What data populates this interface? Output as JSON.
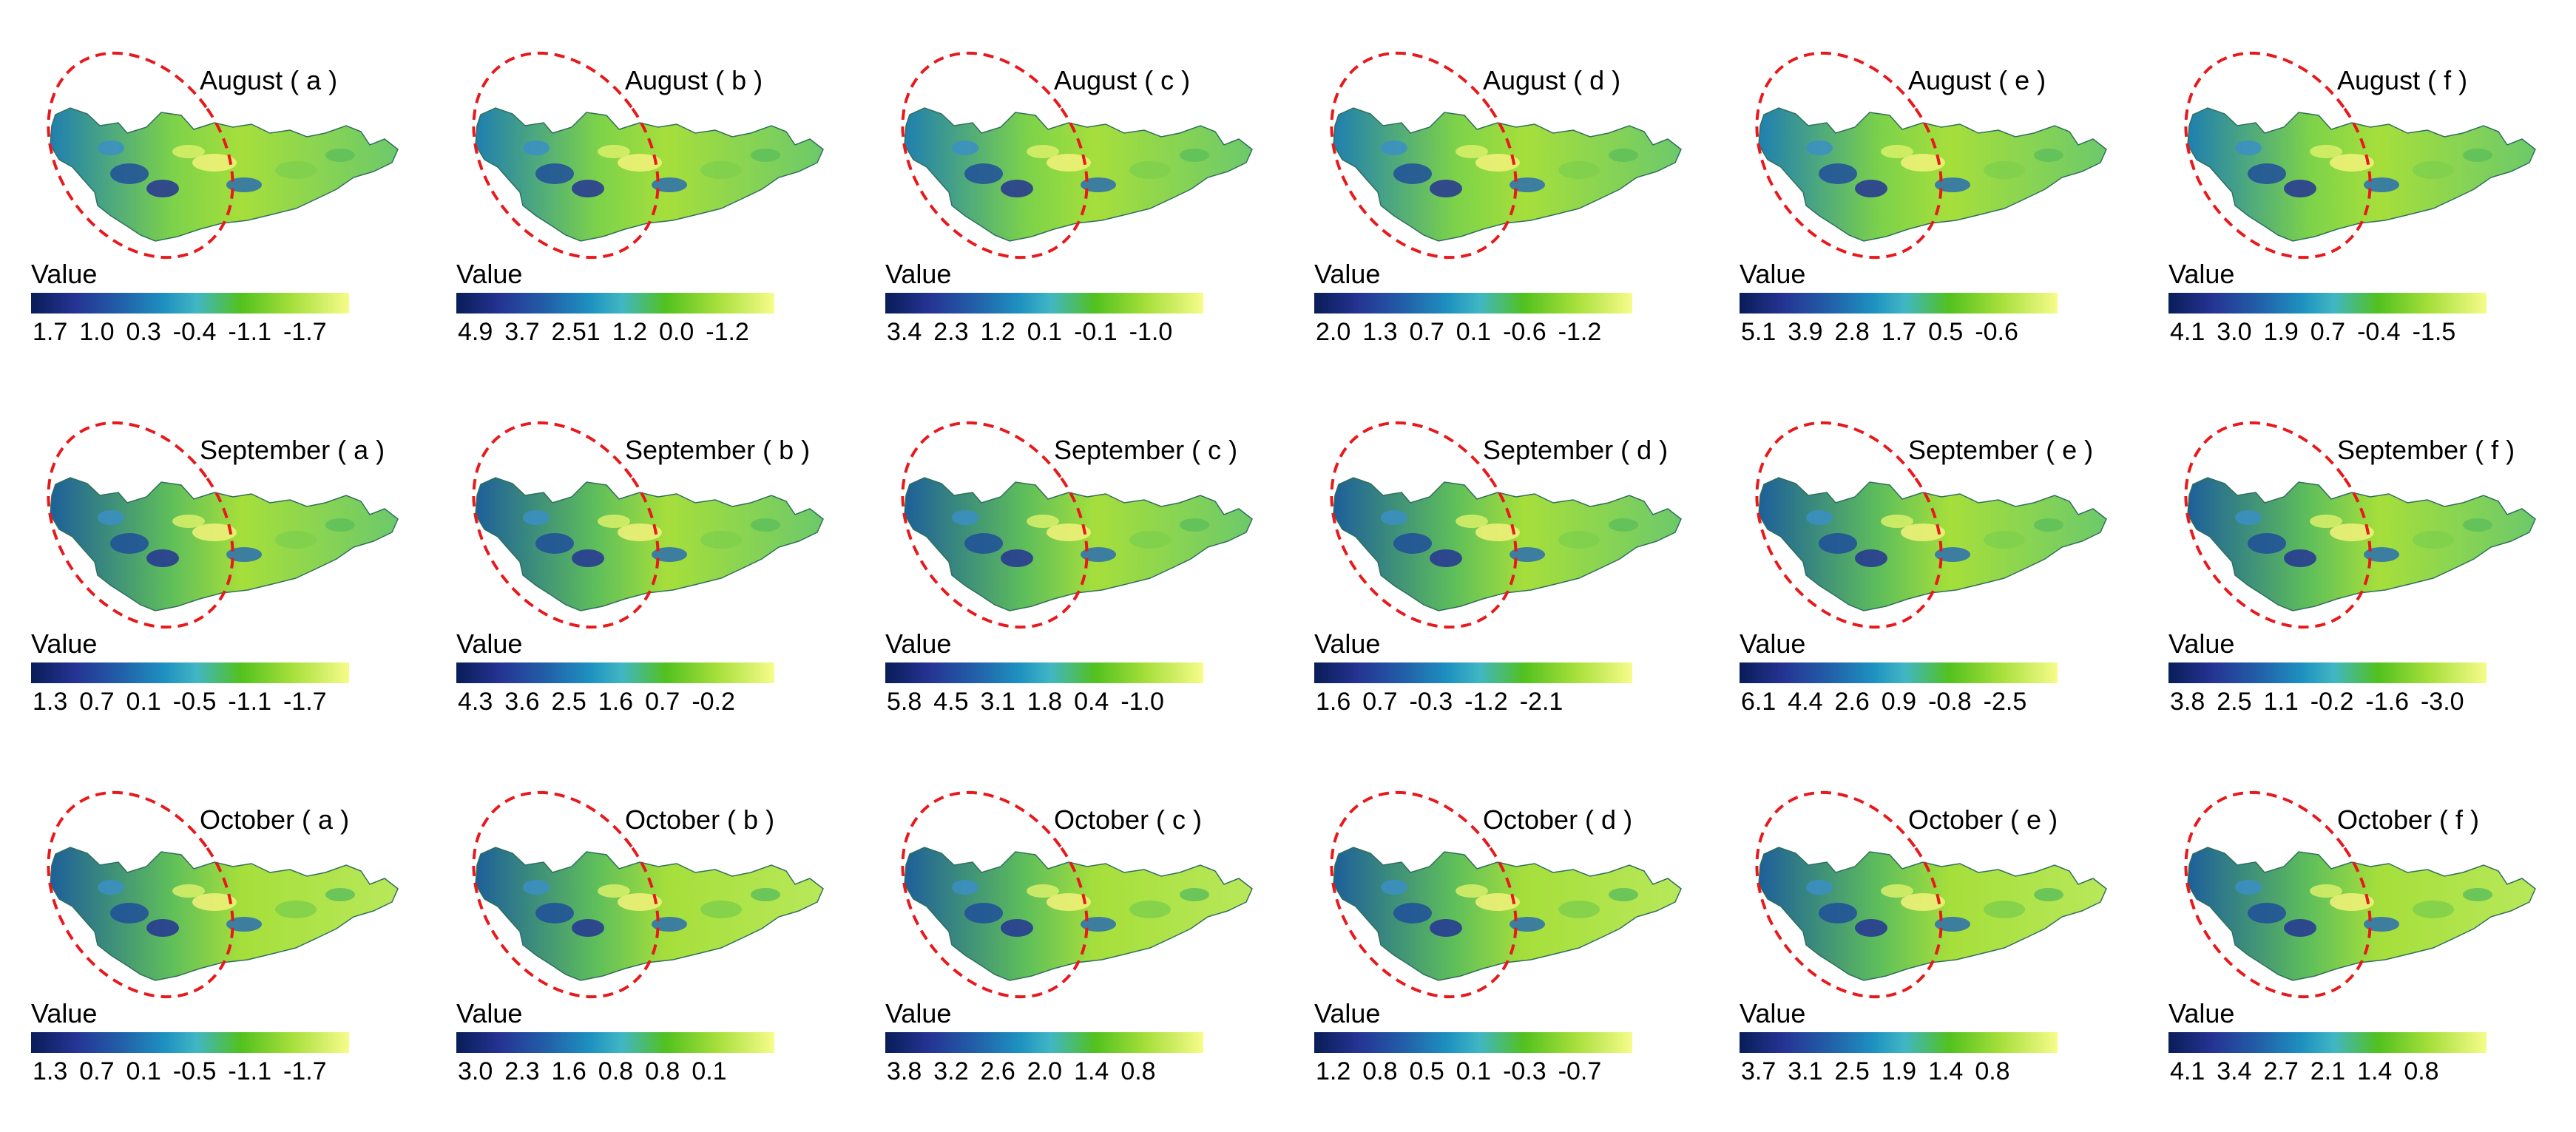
{
  "legend_label": "Value",
  "colormap": {
    "name": "blue-green-yellow",
    "stops": [
      "#081d58",
      "#253494",
      "#225ea8",
      "#1d91c0",
      "#41b6c4",
      "#52c11e",
      "#a6df3b",
      "#f7fc8a"
    ]
  },
  "highlight_color": "#e8191c",
  "rows": [
    {
      "month": "August",
      "panels": [
        {
          "title": "August ( a )",
          "ticks": [
            "1.7",
            "1.0",
            "0.3",
            "-0.4",
            "-1.1",
            "-1.7"
          ]
        },
        {
          "title": "August ( b )",
          "ticks": [
            "4.9",
            "3.7",
            "2.51",
            "1.2",
            "0.0",
            "-1.2"
          ]
        },
        {
          "title": "August ( c )",
          "ticks": [
            "3.4",
            "2.3",
            "1.2",
            "0.1",
            "-0.1",
            "-1.0"
          ]
        },
        {
          "title": "August ( d )",
          "ticks": [
            "2.0",
            "1.3",
            "0.7",
            "0.1",
            "-0.6",
            "-1.2"
          ]
        },
        {
          "title": "August ( e )",
          "ticks": [
            "5.1",
            "3.9",
            "2.8",
            "1.7",
            "0.5",
            "-0.6"
          ]
        },
        {
          "title": "August ( f )",
          "ticks": [
            "4.1",
            "3.0",
            "1.9",
            "0.7",
            "-0.4",
            "-1.5"
          ]
        }
      ]
    },
    {
      "month": "September",
      "panels": [
        {
          "title": "September ( a )",
          "ticks": [
            "1.3",
            "0.7",
            "0.1",
            "-0.5",
            "-1.1",
            "-1.7"
          ]
        },
        {
          "title": "September ( b )",
          "ticks": [
            "4.3",
            "3.6",
            "2.5",
            "1.6",
            "0.7",
            "-0.2"
          ]
        },
        {
          "title": "September ( c )",
          "ticks": [
            "5.8",
            "4.5",
            "3.1",
            "1.8",
            "0.4",
            "-1.0"
          ]
        },
        {
          "title": "September ( d )",
          "ticks": [
            "1.6",
            "0.7",
            "-0.3",
            "-1.2",
            "-2.1"
          ]
        },
        {
          "title": "September ( e )",
          "ticks": [
            "6.1",
            "4.4",
            "2.6",
            "0.9",
            "-0.8",
            "-2.5"
          ]
        },
        {
          "title": "September ( f )",
          "ticks": [
            "3.8",
            "2.5",
            "1.1",
            "-0.2",
            "-1.6",
            "-3.0"
          ]
        }
      ]
    },
    {
      "month": "October",
      "panels": [
        {
          "title": "October ( a )",
          "ticks": [
            "1.3",
            "0.7",
            "0.1",
            "-0.5",
            "-1.1",
            "-1.7"
          ]
        },
        {
          "title": "October ( b )",
          "ticks": [
            "3.0",
            "2.3",
            "1.6",
            "0.8",
            "0.8",
            "0.1"
          ]
        },
        {
          "title": "October ( c )",
          "ticks": [
            "3.8",
            "3.2",
            "2.6",
            "2.0",
            "1.4",
            "0.8"
          ]
        },
        {
          "title": "October ( d )",
          "ticks": [
            "1.2",
            "0.8",
            "0.5",
            "0.1",
            "-0.3",
            "-0.7"
          ]
        },
        {
          "title": "October ( e )",
          "ticks": [
            "3.7",
            "3.1",
            "2.5",
            "1.9",
            "1.4",
            "0.8"
          ]
        },
        {
          "title": "October ( f )",
          "ticks": [
            "4.1",
            "3.4",
            "2.7",
            "2.1",
            "1.4",
            "0.8"
          ]
        }
      ]
    }
  ]
}
